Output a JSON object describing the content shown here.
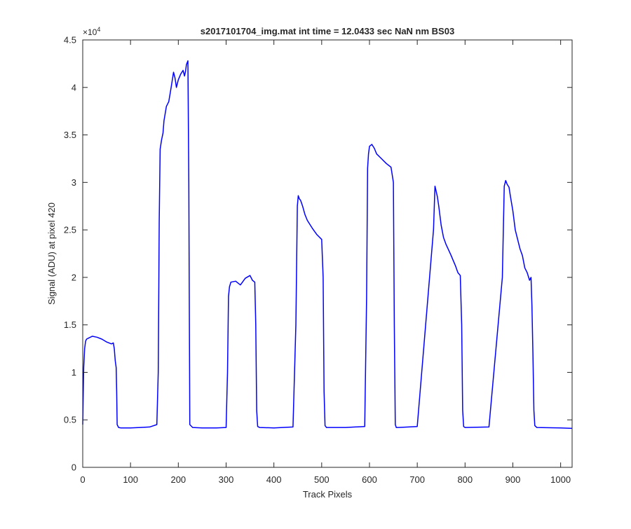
{
  "figure": {
    "background": "#ffffff"
  },
  "chart_data": {
    "type": "line",
    "title": "s2017101704_img.mat int time = 12.0433 sec  NaN nm BS03",
    "xlabel": "Track Pixels",
    "ylabel": "Signal (ADU) at pixel 420",
    "xlim": [
      0,
      1024
    ],
    "ylim": [
      0,
      45000
    ],
    "xticks": [
      0,
      100,
      200,
      300,
      400,
      500,
      600,
      700,
      800,
      900,
      1000
    ],
    "xtick_labels": [
      "0",
      "100",
      "200",
      "300",
      "400",
      "500",
      "600",
      "700",
      "800",
      "900",
      "1000"
    ],
    "yticks": [
      0,
      5000,
      10000,
      15000,
      20000,
      25000,
      30000,
      35000,
      40000,
      45000
    ],
    "ytick_labels": [
      "0",
      "0.5",
      "1",
      "1.5",
      "2",
      "2.5",
      "3",
      "3.5",
      "4",
      "4.5"
    ],
    "y_exponent_label": "×10",
    "y_exponent_power": "4",
    "grid": false,
    "series": [
      {
        "color": "#0000ff",
        "x": [
          0,
          2,
          4,
          6,
          8,
          12,
          20,
          30,
          40,
          50,
          60,
          64,
          66,
          68,
          70,
          71,
          72,
          75,
          80,
          100,
          120,
          140,
          155,
          158,
          160,
          162,
          165,
          168,
          170,
          175,
          180,
          185,
          190,
          193,
          196,
          200,
          205,
          210,
          213,
          215,
          217,
          220,
          222,
          224,
          230,
          250,
          280,
          300,
          303,
          305,
          306,
          307,
          310,
          320,
          330,
          340,
          350,
          355,
          360,
          362,
          364,
          366,
          370,
          400,
          440,
          446,
          449,
          451,
          453,
          456,
          460,
          465,
          470,
          480,
          490,
          500,
          503,
          505,
          507,
          510,
          550,
          590,
          594,
          596,
          598,
          600,
          605,
          610,
          615,
          625,
          635,
          645,
          650,
          652,
          654,
          656,
          660,
          700,
          734,
          737,
          739,
          742,
          745,
          750,
          755,
          760,
          770,
          780,
          785,
          790,
          793,
          795,
          797,
          800,
          850,
          878,
          882,
          885,
          888,
          892,
          895,
          900,
          905,
          910,
          915,
          920,
          925,
          930,
          935,
          938,
          940,
          942,
          944,
          946,
          950,
          1000,
          1024
        ],
        "y": [
          4500,
          10500,
          12500,
          13300,
          13500,
          13600,
          13800,
          13700,
          13500,
          13200,
          13000,
          13100,
          12500,
          11200,
          10500,
          8000,
          4500,
          4200,
          4150,
          4150,
          4200,
          4250,
          4500,
          10000,
          26000,
          33500,
          34500,
          35200,
          36500,
          38000,
          38500,
          40000,
          41600,
          41000,
          40000,
          40800,
          41400,
          41800,
          41200,
          41700,
          42400,
          42800,
          30000,
          4500,
          4200,
          4150,
          4150,
          4200,
          10000,
          18000,
          18500,
          19000,
          19500,
          19600,
          19200,
          19900,
          20200,
          19700,
          19500,
          15000,
          6000,
          4300,
          4200,
          4150,
          4250,
          15000,
          27500,
          28600,
          28300,
          28100,
          27500,
          26600,
          26000,
          25200,
          24500,
          24000,
          20000,
          8000,
          4400,
          4200,
          4200,
          4300,
          18000,
          31500,
          33000,
          33800,
          34000,
          33600,
          33000,
          32500,
          32000,
          31600,
          30000,
          15000,
          4500,
          4200,
          4200,
          4300,
          25000,
          29600,
          29200,
          28500,
          27500,
          25500,
          24200,
          23500,
          22400,
          21200,
          20500,
          20200,
          15000,
          6000,
          4300,
          4200,
          4250,
          20000,
          29600,
          30200,
          29800,
          29500,
          28500,
          27000,
          25000,
          24000,
          23000,
          22300,
          21000,
          20500,
          19700,
          20000,
          17000,
          12000,
          6000,
          4400,
          4200,
          4150,
          4100
        ]
      }
    ]
  }
}
